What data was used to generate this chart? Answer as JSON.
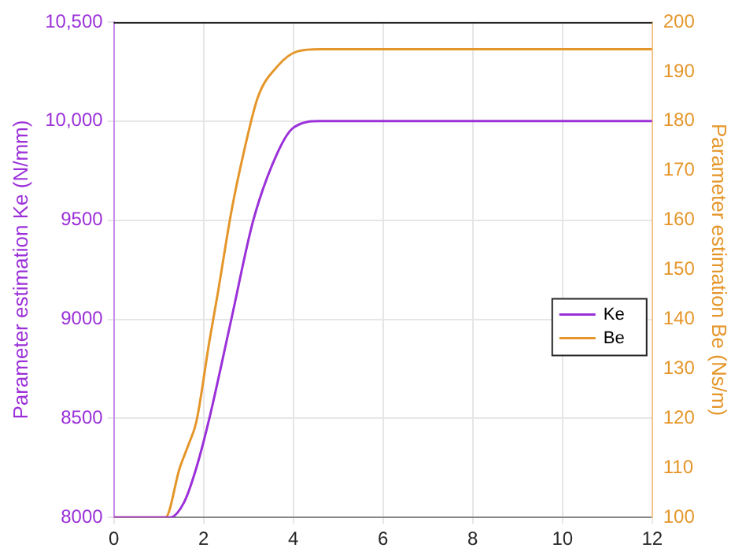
{
  "chart_data": {
    "type": "line",
    "ylabel": "Parameter estimation Ke (N/mm)",
    "y2label": "Parameter estimation Be (Ns/m)",
    "xlim": [
      0,
      12
    ],
    "xticks": [
      0,
      2,
      4,
      6,
      8,
      10,
      12
    ],
    "ylim": [
      8000,
      10500
    ],
    "yticks": [
      8000,
      8500,
      9000,
      9500,
      {
        "value": 10000,
        "label": "10,000"
      },
      {
        "value": 10500,
        "label": "10,500"
      }
    ],
    "y2lim": [
      100,
      200
    ],
    "y2ticks": [
      100,
      110,
      120,
      130,
      140,
      150,
      160,
      170,
      180,
      190,
      200
    ],
    "grid": true,
    "legend": "right",
    "marker": "none",
    "line_style": "solid",
    "series": [
      {
        "name": "Ke",
        "color": "#9b30d9",
        "x": [
          0,
          1.25,
          1.57,
          1.84,
          2.13,
          2.62,
          3.11,
          3.64,
          4.0,
          4.6,
          12
        ],
        "values": [
          8000,
          8000,
          8078,
          8250,
          8500,
          9000,
          9500,
          9836,
          9966,
          10000,
          10000
        ]
      },
      {
        "name": "Be",
        "color": "#e5962a",
        "axis": "y2",
        "x": [
          0,
          1.15,
          1.47,
          1.67,
          1.84,
          2.13,
          2.33,
          2.62,
          2.89,
          3.21,
          3.64,
          4.1,
          4.6,
          12
        ],
        "values": [
          100,
          100,
          110,
          114.8,
          119.3,
          135.5,
          145.9,
          161.7,
          173.4,
          184.8,
          191,
          194.1,
          194.5,
          194.5
        ]
      }
    ]
  }
}
